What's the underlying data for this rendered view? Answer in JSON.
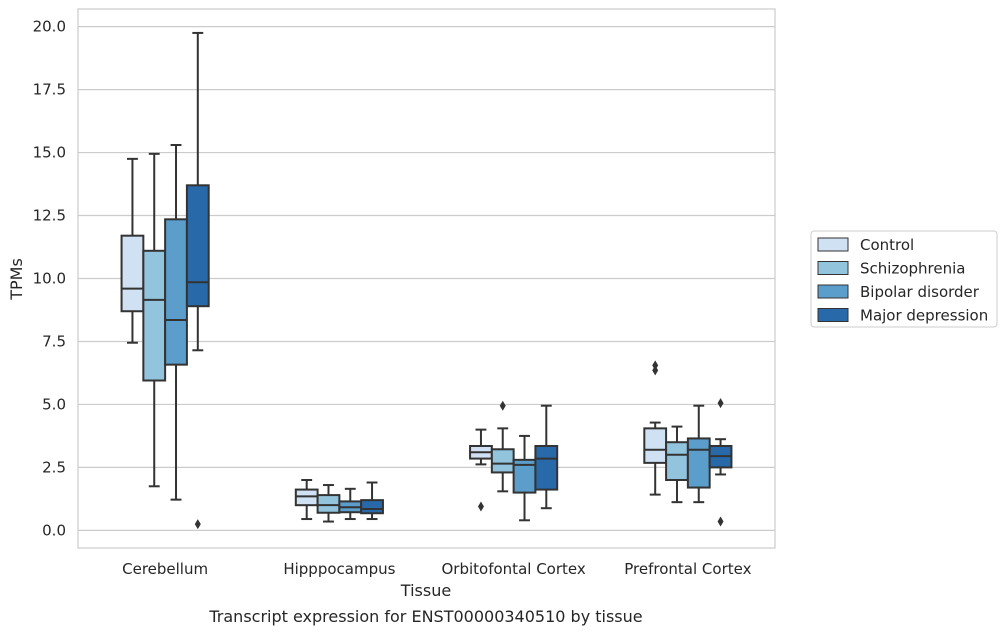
{
  "chart_data": {
    "type": "box",
    "xlabel": "Tissue",
    "ylabel": "TPMs",
    "caption": "Transcript expression for ENST00000340510 by tissue",
    "ylim": [
      -0.7,
      20.7
    ],
    "yticks": [
      "0.0",
      "2.5",
      "5.0",
      "7.5",
      "10.0",
      "12.5",
      "15.0",
      "17.5",
      "20.0"
    ],
    "grid": "horizontal",
    "legend_position": "right",
    "categories": [
      "Cerebellum",
      "Hipppocampus",
      "Orbitofontal Cortex",
      "Prefrontal Cortex"
    ],
    "series": [
      {
        "name": "Control",
        "color": "#cfe1f2",
        "boxes": [
          {
            "min": 7.45,
            "q1": 8.7,
            "median": 9.6,
            "q3": 11.7,
            "max": 14.75,
            "outliers": []
          },
          {
            "min": 0.45,
            "q1": 1.0,
            "median": 1.35,
            "q3": 1.62,
            "max": 2.0,
            "outliers": []
          },
          {
            "min": 2.62,
            "q1": 2.85,
            "median": 3.1,
            "q3": 3.35,
            "max": 4.0,
            "outliers": [
              0.95
            ]
          },
          {
            "min": 1.42,
            "q1": 2.68,
            "median": 3.2,
            "q3": 4.05,
            "max": 4.28,
            "outliers": [
              6.35,
              6.55
            ]
          }
        ]
      },
      {
        "name": "Schizophrenia",
        "color": "#93c4de",
        "boxes": [
          {
            "min": 1.75,
            "q1": 5.95,
            "median": 9.15,
            "q3": 11.1,
            "max": 14.95,
            "outliers": []
          },
          {
            "min": 0.35,
            "q1": 0.7,
            "median": 1.0,
            "q3": 1.4,
            "max": 1.8,
            "outliers": []
          },
          {
            "min": 1.55,
            "q1": 2.3,
            "median": 2.65,
            "q3": 3.22,
            "max": 4.05,
            "outliers": [
              4.95
            ]
          },
          {
            "min": 1.12,
            "q1": 2.0,
            "median": 3.0,
            "q3": 3.5,
            "max": 4.12,
            "outliers": []
          }
        ]
      },
      {
        "name": "Bipolar disorder",
        "color": "#5b9dcb",
        "boxes": [
          {
            "min": 1.22,
            "q1": 6.58,
            "median": 8.35,
            "q3": 12.35,
            "max": 15.3,
            "outliers": []
          },
          {
            "min": 0.45,
            "q1": 0.72,
            "median": 0.92,
            "q3": 1.15,
            "max": 1.65,
            "outliers": []
          },
          {
            "min": 0.4,
            "q1": 1.5,
            "median": 2.6,
            "q3": 2.8,
            "max": 3.75,
            "outliers": []
          },
          {
            "min": 1.12,
            "q1": 1.7,
            "median": 3.2,
            "q3": 3.65,
            "max": 4.95,
            "outliers": []
          }
        ]
      },
      {
        "name": "Major depression",
        "color": "#2869a9",
        "boxes": [
          {
            "min": 7.15,
            "q1": 8.9,
            "median": 9.85,
            "q3": 13.7,
            "max": 19.75,
            "outliers": [
              0.25
            ]
          },
          {
            "min": 0.45,
            "q1": 0.68,
            "median": 0.85,
            "q3": 1.2,
            "max": 1.9,
            "outliers": []
          },
          {
            "min": 0.88,
            "q1": 1.62,
            "median": 2.85,
            "q3": 3.35,
            "max": 4.95,
            "outliers": []
          },
          {
            "min": 2.22,
            "q1": 2.5,
            "median": 2.95,
            "q3": 3.35,
            "max": 3.62,
            "outliers": [
              5.05,
              0.35
            ]
          }
        ]
      }
    ]
  }
}
